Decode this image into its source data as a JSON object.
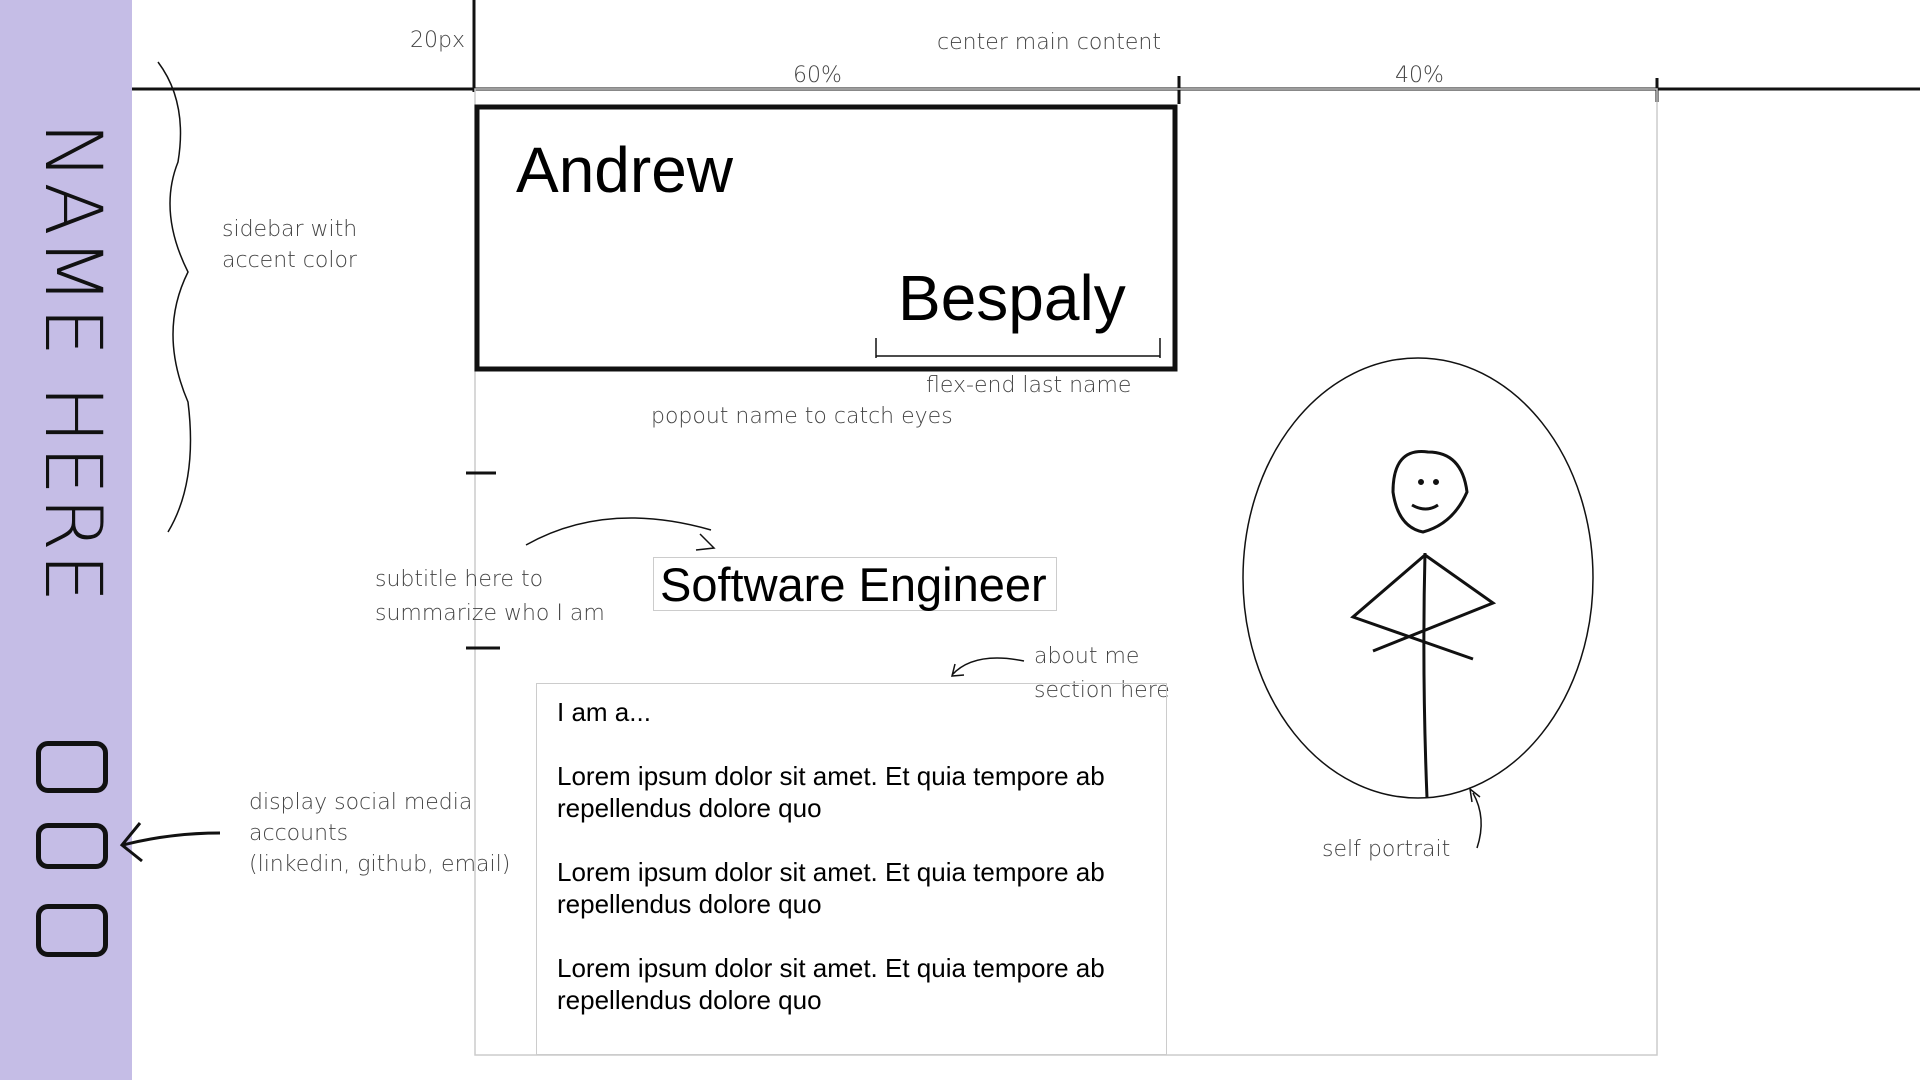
{
  "sidebar": {
    "name": "NAME HERE"
  },
  "annotations": {
    "gutter": "20px",
    "center": "center main content",
    "left_width": "60%",
    "right_width": "40%",
    "sidebar": [
      "sidebar with",
      "accent color"
    ],
    "flex_end": "flex-end last name",
    "popout": "popout name to catch eyes",
    "subtitle": [
      "subtitle here to",
      "summarize who I am"
    ],
    "about": [
      "about me",
      "section here"
    ],
    "social": [
      "display social media",
      "accounts",
      "(linkedin, github, email)"
    ],
    "portrait": "self portrait"
  },
  "header": {
    "first_name": "Andrew",
    "last_name": "Bespaly"
  },
  "subtitle": "Software Engineer",
  "about": {
    "intro": "I am a...",
    "paragraphs": [
      "Lorem ipsum dolor sit amet. Et quia tempore ab repellendus dolore quo",
      "Lorem ipsum dolor sit amet. Et quia tempore ab repellendus dolore quo",
      "Lorem ipsum dolor sit amet. Et quia tempore ab repellendus dolore quo"
    ]
  }
}
